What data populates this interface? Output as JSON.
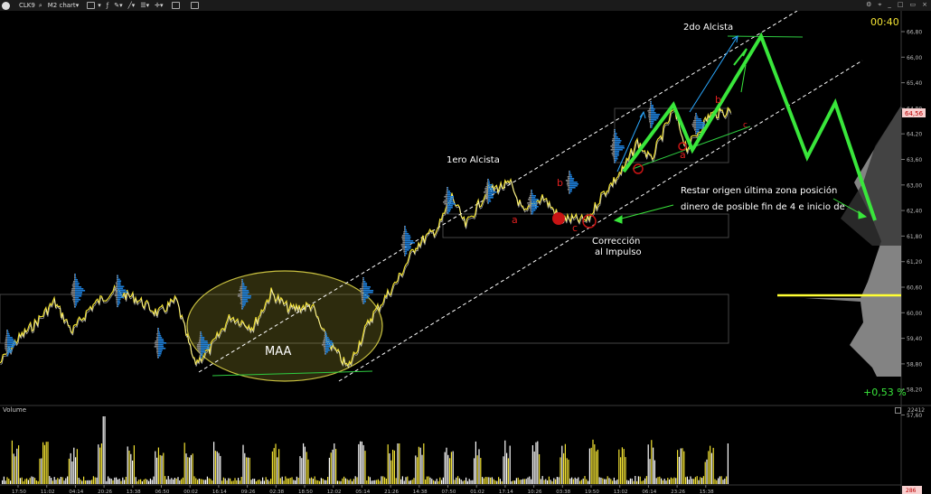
{
  "toolbar": {
    "symbol": "CLK9",
    "chart_name": "M2 chart",
    "window_icons": [
      "_",
      "□",
      "▭",
      "×"
    ]
  },
  "annotations": {
    "second_bull": "2do Alcista",
    "first_bull": "1ero Alcista",
    "maa": "MAA",
    "correction_1": "Corrección",
    "correction_2": "al Impulso",
    "note_1": "Restar origen última zona posición",
    "note_2": "dinero de posible fin de 4 e inicio de",
    "wave_a1": "a",
    "wave_b1": "b",
    "wave_c1": "c",
    "wave_a2": "a",
    "wave_b2": "b",
    "wave_c2": "c"
  },
  "timer": "00:40",
  "percent_change": "+0,53 %",
  "current_price_tag": "64,56",
  "volume_label": "Volume",
  "volume_max": "22412",
  "volume_min": "286",
  "price_axis": [
    "66,80",
    "66,00",
    "65,40",
    "64,80",
    "64,20",
    "63,60",
    "63,00",
    "62,40",
    "61,80",
    "61,20",
    "60,60",
    "60,00",
    "59,40",
    "58,80",
    "58,20",
    "57,60"
  ],
  "time_axis": [
    "17:50",
    "11:02",
    "04:14",
    "20:26",
    "13:38",
    "06:50",
    "00:02",
    "16:14",
    "09:26",
    "02:38",
    "18:50",
    "12:02",
    "05:14",
    "21:26",
    "14:38",
    "07:50",
    "01:02",
    "17:14",
    "10:26",
    "03:38",
    "19:50",
    "13:02",
    "06:14",
    "23:26",
    "15:38"
  ],
  "colors": {
    "channel": "#ffffff",
    "forecast": "#39e63b",
    "profile": "#1e7fd9",
    "candle": "#f2e233",
    "poc": "#ffff33",
    "label_red": "#e02020",
    "timer": "#f2e233",
    "percent": "#39e63b"
  }
}
